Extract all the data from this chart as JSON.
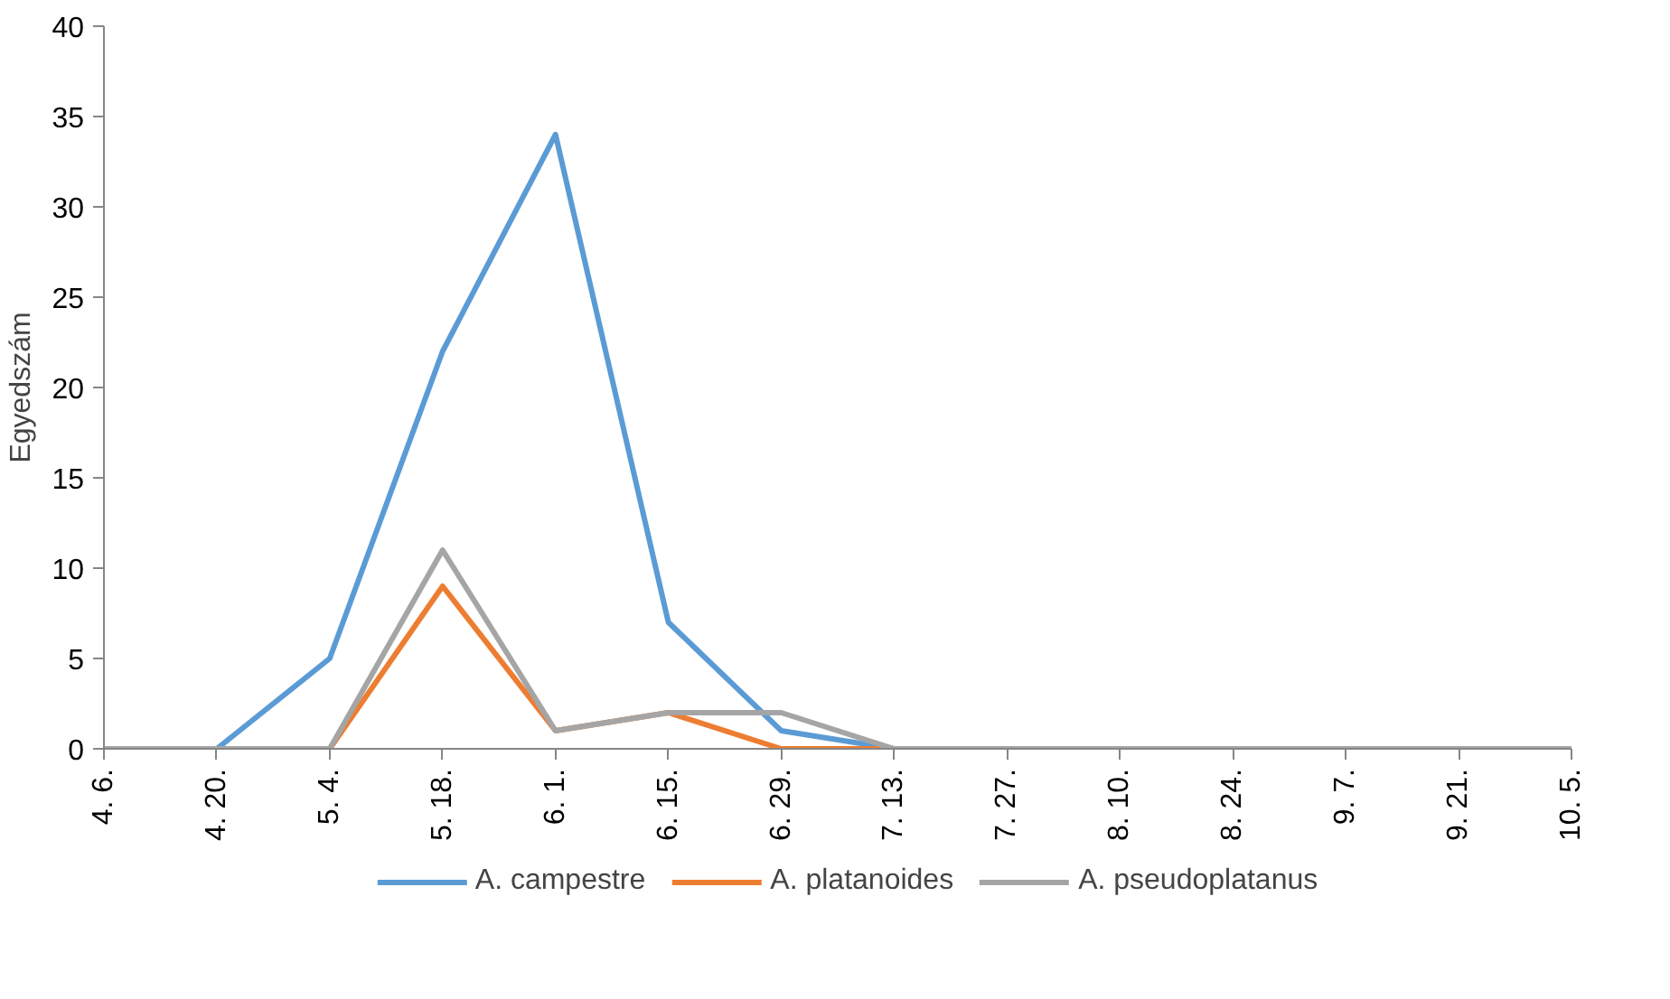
{
  "chart_data": {
    "type": "line",
    "ylabel": "Egyedszám",
    "categories": [
      "4. 6.",
      "4. 20.",
      "5. 4.",
      "5. 18.",
      "6. 1.",
      "6. 15.",
      "6. 29.",
      "7. 13.",
      "7. 27.",
      "8. 10.",
      "8. 24.",
      "9. 7.",
      "9. 21.",
      "10. 5."
    ],
    "series": [
      {
        "name": "A. campestre",
        "color": "#5b9bd5",
        "values": [
          0,
          0,
          5,
          22,
          34,
          7,
          1,
          0,
          0,
          null,
          null,
          null,
          null,
          null
        ]
      },
      {
        "name": "A. platanoides",
        "color": "#ed7d31",
        "values": [
          null,
          null,
          0,
          9,
          1,
          2,
          0,
          0,
          null,
          null,
          null,
          null,
          null,
          null
        ]
      },
      {
        "name": "A. pseudoplatanus",
        "color": "#a5a5a5",
        "values": [
          0,
          0,
          0,
          11,
          1,
          2,
          2,
          0,
          0,
          0,
          0,
          0,
          0,
          0
        ]
      }
    ],
    "ylim": [
      0,
      40
    ],
    "yticks": [
      0,
      5,
      10,
      15,
      20,
      25,
      30,
      35,
      40
    ],
    "grid": false,
    "legend": "bottom",
    "marker": "none",
    "line_style": "solid"
  }
}
